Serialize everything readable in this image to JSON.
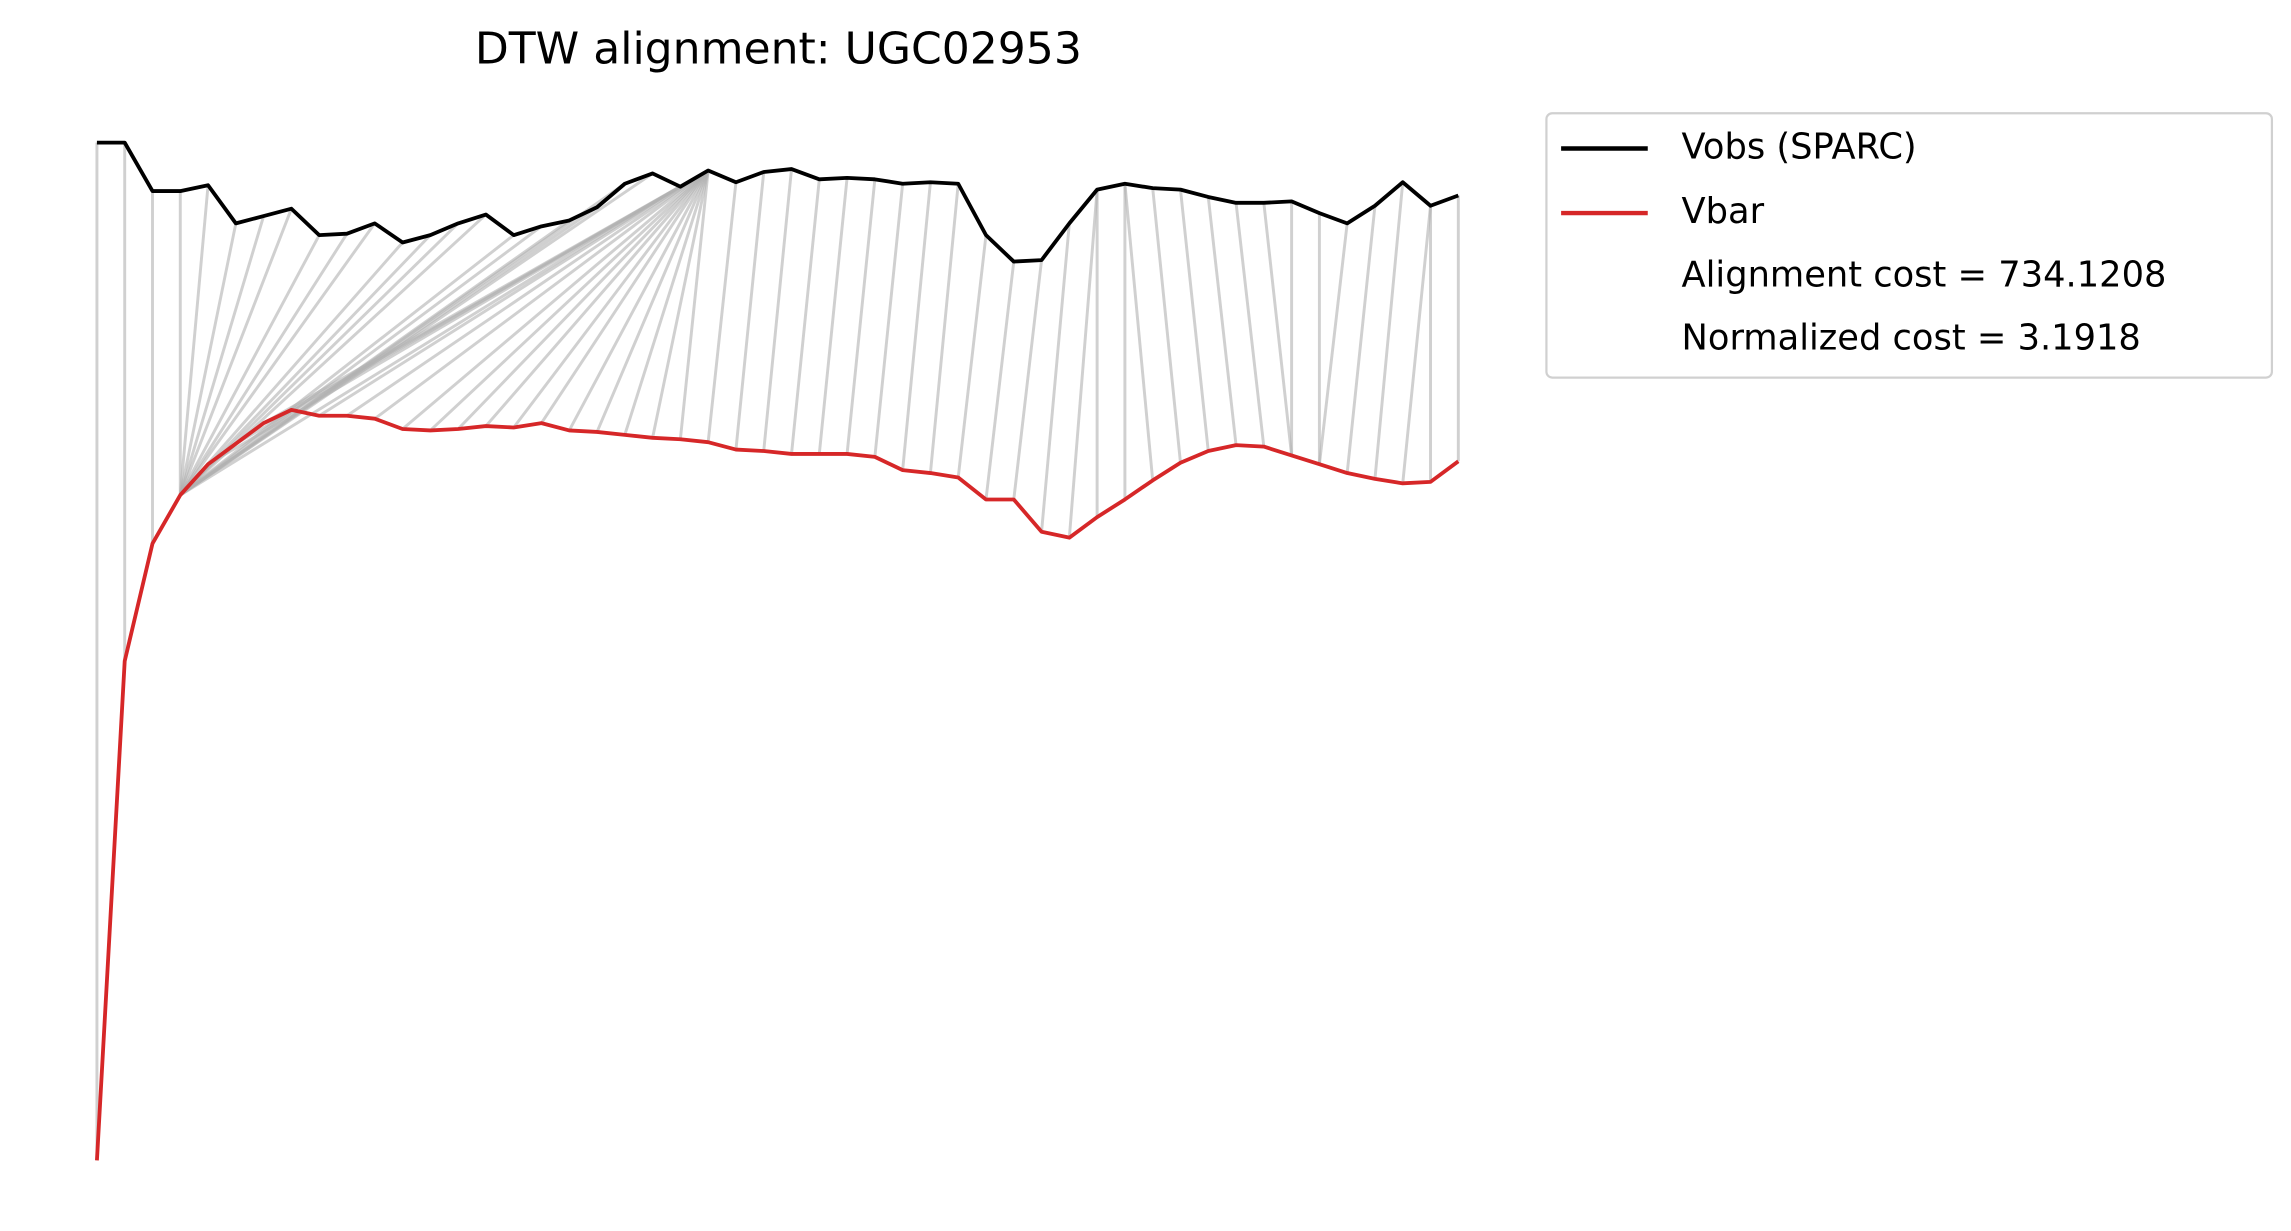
{
  "chart_data": {
    "type": "dtw",
    "title": "DTW alignment: UGC02953",
    "series": [
      {
        "name": "Vobs (SPARC)",
        "color": "#000000",
        "values": [
          703,
          703,
          670,
          670,
          674,
          648,
          653,
          658,
          640,
          641,
          648,
          635,
          640,
          648,
          654,
          640,
          646,
          650,
          659,
          675,
          682,
          673,
          684,
          676,
          683,
          685,
          678,
          679,
          678,
          675,
          676,
          675,
          640,
          622,
          623,
          648,
          671,
          675,
          672,
          671,
          666,
          662,
          662,
          663,
          655,
          648,
          660,
          676,
          660,
          667
        ]
      },
      {
        "name": "Vbar",
        "color": "#d62728",
        "values": [
          10,
          350,
          430,
          463,
          484,
          498,
          512,
          521,
          517,
          517,
          515,
          508,
          507,
          508,
          510,
          509,
          512,
          507,
          506,
          504,
          502,
          501,
          499,
          494,
          493,
          491,
          491,
          491,
          489,
          480,
          478,
          475,
          460,
          460,
          438,
          434,
          448,
          460,
          473,
          485,
          493,
          497,
          496,
          490,
          484,
          478,
          474,
          471,
          472,
          486
        ]
      }
    ],
    "annotations": [
      "Alignment cost = 734.1208",
      "Normalized cost = 3.1918"
    ],
    "alignment": [
      [
        0,
        0
      ],
      [
        1,
        1
      ],
      [
        2,
        2
      ],
      [
        3,
        3
      ],
      [
        4,
        3
      ],
      [
        5,
        3
      ],
      [
        6,
        3
      ],
      [
        7,
        3
      ],
      [
        8,
        3
      ],
      [
        9,
        3
      ],
      [
        10,
        3
      ],
      [
        11,
        3
      ],
      [
        12,
        3
      ],
      [
        13,
        3
      ],
      [
        14,
        3
      ],
      [
        15,
        3
      ],
      [
        16,
        3
      ],
      [
        17,
        3
      ],
      [
        18,
        3
      ],
      [
        19,
        3
      ],
      [
        20,
        3
      ],
      [
        21,
        3
      ],
      [
        22,
        4
      ],
      [
        22,
        5
      ],
      [
        22,
        6
      ],
      [
        22,
        7
      ],
      [
        22,
        8
      ],
      [
        22,
        9
      ],
      [
        22,
        10
      ],
      [
        22,
        11
      ],
      [
        22,
        12
      ],
      [
        22,
        13
      ],
      [
        22,
        14
      ],
      [
        22,
        15
      ],
      [
        22,
        16
      ],
      [
        22,
        17
      ],
      [
        22,
        18
      ],
      [
        22,
        19
      ],
      [
        22,
        20
      ],
      [
        22,
        21
      ],
      [
        23,
        22
      ],
      [
        24,
        23
      ],
      [
        25,
        24
      ],
      [
        26,
        25
      ],
      [
        27,
        26
      ],
      [
        28,
        27
      ],
      [
        29,
        28
      ],
      [
        30,
        29
      ],
      [
        31,
        30
      ],
      [
        32,
        31
      ],
      [
        33,
        32
      ],
      [
        34,
        33
      ],
      [
        35,
        34
      ],
      [
        36,
        35
      ],
      [
        36,
        36
      ],
      [
        37,
        37
      ],
      [
        37,
        38
      ],
      [
        38,
        39
      ],
      [
        39,
        40
      ],
      [
        40,
        41
      ],
      [
        41,
        42
      ],
      [
        42,
        43
      ],
      [
        43,
        43
      ],
      [
        44,
        44
      ],
      [
        45,
        44
      ],
      [
        46,
        45
      ],
      [
        47,
        46
      ],
      [
        48,
        47
      ],
      [
        48,
        48
      ],
      [
        49,
        49
      ]
    ],
    "alignment_color": "#b0b0b0",
    "ylim": [
      0,
      710
    ],
    "legend": "upper right outside"
  }
}
